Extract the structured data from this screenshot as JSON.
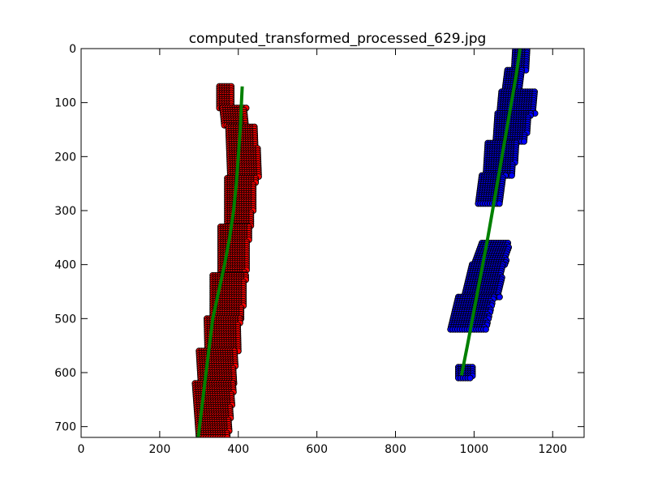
{
  "chart_data": {
    "type": "scatter",
    "title": "computed_transformed_processed_629.jpg",
    "xlabel": "",
    "ylabel": "",
    "xlim": [
      0,
      1280
    ],
    "ylim": [
      720,
      0
    ],
    "y_inverted": true,
    "grid": false,
    "x_ticks": [
      0,
      200,
      400,
      600,
      800,
      1000,
      1200
    ],
    "y_ticks": [
      0,
      100,
      200,
      300,
      400,
      500,
      600,
      700
    ],
    "x_tick_labels": [
      "0",
      "200",
      "400",
      "600",
      "800",
      "1000",
      "1200"
    ],
    "y_tick_labels": [
      "0",
      "100",
      "200",
      "300",
      "400",
      "500",
      "600",
      "700"
    ],
    "colors": {
      "left_points": "#ff0000",
      "right_points": "#0000ff",
      "fit_line": "#008000",
      "point_edge": "#000000"
    },
    "series": [
      {
        "kind": "scatter",
        "color": "#ff0000",
        "bands": [
          {
            "y": [
              70,
              110
            ],
            "x_left": [
              352,
              352
            ],
            "x_right": [
              385,
              385
            ]
          },
          {
            "y": [
              110,
              145
            ],
            "x_left": [
              360,
              365
            ],
            "x_right": [
              420,
              420
            ]
          },
          {
            "y": [
              145,
              240
            ],
            "x_left": [
              375,
              380
            ],
            "x_right": [
              445,
              455
            ]
          },
          {
            "y": [
              240,
              330
            ],
            "x_left": [
              372,
              372
            ],
            "x_right": [
              445,
              435
            ]
          },
          {
            "y": [
              330,
              420
            ],
            "x_left": [
              355,
              355
            ],
            "x_right": [
              430,
              420
            ]
          },
          {
            "y": [
              420,
              500
            ],
            "x_left": [
              335,
              335
            ],
            "x_right": [
              420,
              410
            ]
          },
          {
            "y": [
              500,
              560
            ],
            "x_left": [
              320,
              322
            ],
            "x_right": [
              405,
              400
            ]
          },
          {
            "y": [
              560,
              620
            ],
            "x_left": [
              300,
              305
            ],
            "x_right": [
              395,
              390
            ]
          },
          {
            "y": [
              620,
              720
            ],
            "x_left": [
              290,
              300
            ],
            "x_right": [
              390,
              375
            ]
          }
        ]
      },
      {
        "kind": "scatter",
        "color": "#0000ff",
        "bands": [
          {
            "y": [
              0,
              40
            ],
            "x_left": [
              1105,
              1102
            ],
            "x_right": [
              1135,
              1135
            ]
          },
          {
            "y": [
              40,
              80
            ],
            "x_left": [
              1085,
              1078
            ],
            "x_right": [
              1125,
              1120
            ]
          },
          {
            "y": [
              80,
              120
            ],
            "x_left": [
              1070,
              1065
            ],
            "x_right": [
              1155,
              1155
            ]
          },
          {
            "y": [
              120,
              175
            ],
            "x_left": [
              1060,
              1055
            ],
            "x_right": [
              1145,
              1130
            ]
          },
          {
            "y": [
              175,
              235
            ],
            "x_left": [
              1035,
              1030
            ],
            "x_right": [
              1110,
              1100
            ]
          },
          {
            "y": [
              235,
              290
            ],
            "x_left": [
              1020,
              1010
            ],
            "x_right": [
              1080,
              1065
            ]
          },
          {
            "y": [
              360,
              400
            ],
            "x_left": [
              1020,
              1000
            ],
            "x_right": [
              1090,
              1080
            ]
          },
          {
            "y": [
              400,
              460
            ],
            "x_left": [
              995,
              975
            ],
            "x_right": [
              1075,
              1065
            ]
          },
          {
            "y": [
              460,
              520
            ],
            "x_left": [
              960,
              940
            ],
            "x_right": [
              1050,
              1030
            ]
          },
          {
            "y": [
              590,
              610
            ],
            "x_left": [
              960,
              960
            ],
            "x_right": [
              1000,
              995
            ]
          }
        ]
      },
      {
        "kind": "line",
        "color": "#008000",
        "x": [
          410,
          408,
          405,
          400,
          395,
          388,
          378,
          365,
          350,
          335,
          318,
          298
        ],
        "y": [
          70,
          100,
          150,
          200,
          250,
          300,
          350,
          400,
          450,
          500,
          600,
          720
        ]
      },
      {
        "kind": "line",
        "color": "#008000",
        "x": [
          1117,
          1107,
          1095,
          1083,
          1071,
          1059,
          1047,
          1035,
          1022,
          1009,
          996,
          983,
          968
        ],
        "y": [
          0,
          50,
          100,
          150,
          200,
          250,
          300,
          350,
          400,
          450,
          500,
          550,
          605
        ]
      }
    ]
  }
}
